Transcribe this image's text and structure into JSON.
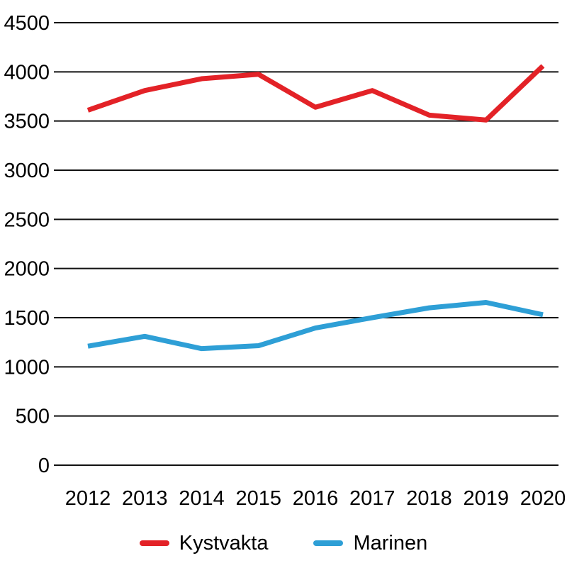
{
  "chart_data": {
    "type": "line",
    "x": [
      "2012",
      "2013",
      "2014",
      "2015",
      "2016",
      "2017",
      "2018",
      "2019",
      "2020"
    ],
    "series": [
      {
        "name": "Kystvakta",
        "color": "#e32227",
        "values": [
          3610,
          3810,
          3930,
          3975,
          3640,
          3810,
          3560,
          3510,
          4060
        ]
      },
      {
        "name": "Marinen",
        "color": "#2e9fd6",
        "values": [
          1210,
          1310,
          1185,
          1215,
          1395,
          1500,
          1600,
          1655,
          1530
        ]
      }
    ],
    "ylim": [
      0,
      4500
    ],
    "ytick_step": 500,
    "yticks": [
      "0",
      "500",
      "1000",
      "1500",
      "2000",
      "2500",
      "3000",
      "3500",
      "4000",
      "4500"
    ],
    "grid": true,
    "legend_position": "bottom",
    "title": "",
    "xlabel": "",
    "ylabel": ""
  }
}
